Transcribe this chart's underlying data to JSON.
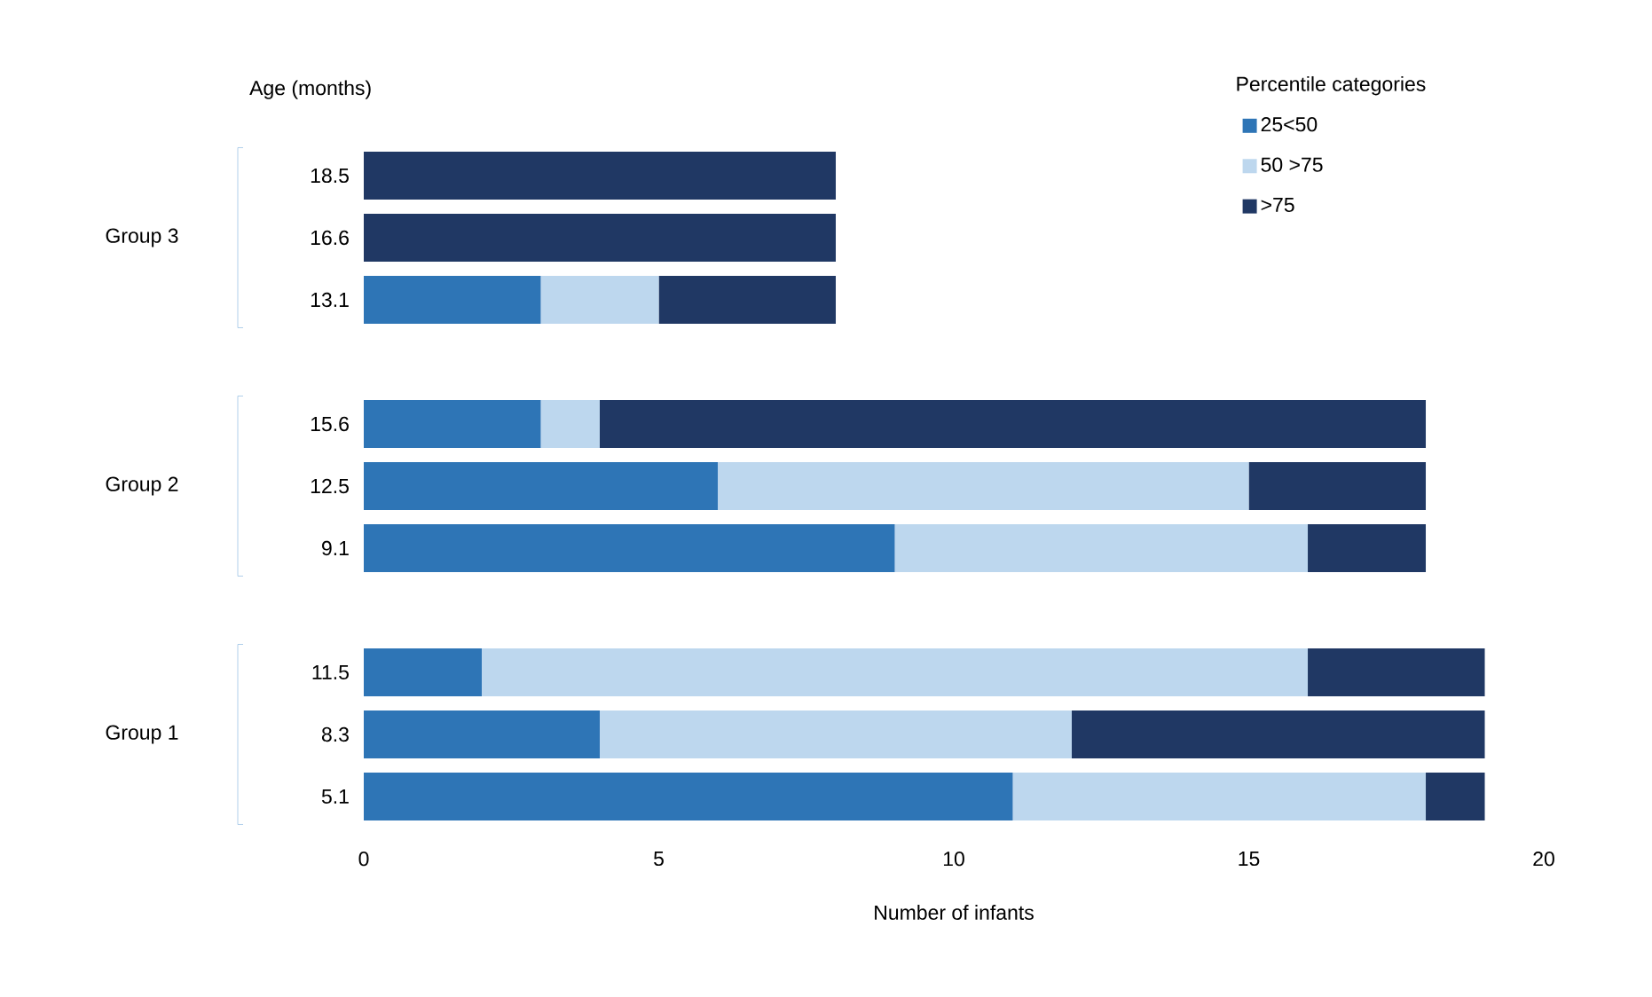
{
  "chart_data": {
    "type": "bar",
    "orientation": "horizontal",
    "stacked": true,
    "ylabel": "Age (months)",
    "xlabel": "Number of infants",
    "legend_title": "Percentile categories",
    "legend": "top right",
    "categories": [
      "18.5",
      "16.6",
      "13.1",
      null,
      "15.6",
      "12.5",
      "9.1",
      null,
      "11.5",
      "8.3",
      "5.1"
    ],
    "annotations": [
      "Group 3",
      "Group 2",
      "Group 1"
    ],
    "series": [
      {
        "name": "25<50",
        "color": "#2e75b6",
        "values": [
          0,
          0,
          3,
          null,
          3,
          6,
          9,
          null,
          2,
          4,
          11
        ]
      },
      {
        "name": "50 >75",
        "color": "#bdd7ee",
        "values": [
          0,
          0,
          2,
          null,
          1,
          9,
          7,
          null,
          14,
          8,
          7
        ]
      },
      {
        "name": ">75",
        "color": "#203864",
        "values": [
          8,
          8,
          3,
          null,
          14,
          3,
          2,
          null,
          3,
          7,
          1
        ]
      }
    ],
    "xlim": [
      0,
      20
    ],
    "xticks": [
      0,
      5,
      10,
      15,
      20
    ],
    "grid": false
  }
}
